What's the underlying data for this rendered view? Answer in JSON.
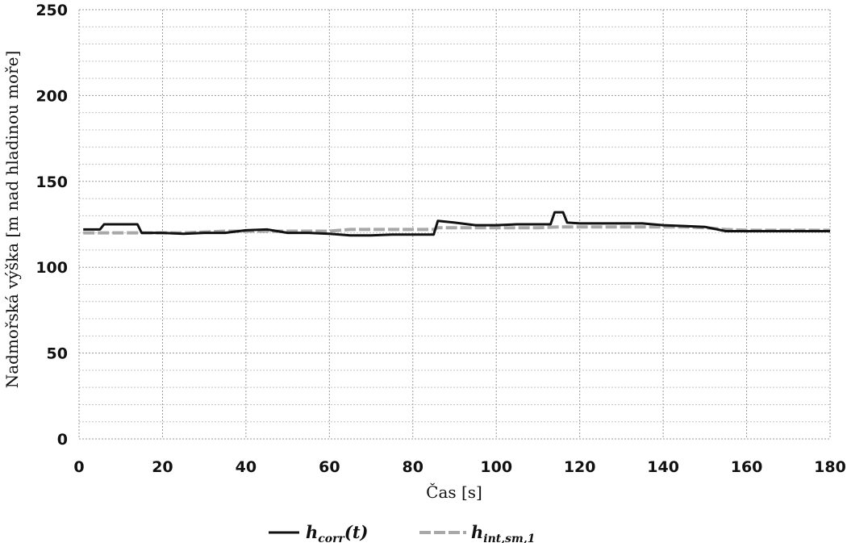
{
  "chart_data": {
    "type": "line",
    "title": "",
    "xlabel": "Čas [s]",
    "ylabel": "Nadmořská výška [m nad hladinou moře]",
    "xlim": [
      0,
      180
    ],
    "ylim": [
      0,
      250
    ],
    "x_ticks": [
      0,
      20,
      40,
      60,
      80,
      100,
      120,
      140,
      160,
      180
    ],
    "y_ticks": [
      0,
      50,
      100,
      150,
      200,
      250
    ],
    "y_minor_step": 10,
    "grid": true,
    "legend_position": "bottom",
    "series": [
      {
        "name": "h_corr(t)",
        "legend_main": "h",
        "legend_sub": "corr",
        "legend_suffix": "(t)",
        "color": "#111111",
        "style": "solid",
        "x": [
          1,
          5,
          6,
          14,
          15,
          20,
          25,
          30,
          35,
          40,
          45,
          50,
          55,
          60,
          65,
          70,
          75,
          80,
          85,
          86,
          90,
          95,
          100,
          105,
          110,
          113,
          114,
          116,
          117,
          120,
          125,
          130,
          135,
          140,
          145,
          150,
          155,
          160,
          165,
          170,
          175,
          180
        ],
        "y": [
          122,
          122,
          125,
          125,
          120,
          120,
          119.5,
          120,
          120,
          121.5,
          122,
          120,
          120,
          119.5,
          118.5,
          118.5,
          119,
          119,
          119,
          127,
          126,
          124.5,
          124.5,
          125,
          125,
          125,
          132,
          132,
          126,
          125.5,
          125.5,
          125.5,
          125.5,
          124.5,
          124,
          123.5,
          121,
          121,
          121,
          121,
          121,
          121
        ]
      },
      {
        "name": "h_int,sm,1",
        "legend_main": "h",
        "legend_sub": "int,sm,1",
        "legend_suffix": "",
        "color": "#a8a8a8",
        "style": "dashed",
        "x": [
          1,
          5,
          10,
          15,
          20,
          25,
          30,
          35,
          40,
          45,
          50,
          55,
          60,
          65,
          70,
          75,
          80,
          85,
          86,
          90,
          95,
          100,
          105,
          110,
          115,
          120,
          125,
          130,
          135,
          140,
          145,
          150,
          155,
          160,
          165,
          170,
          175,
          180
        ],
        "y": [
          120,
          120,
          120,
          120,
          120,
          120,
          120.5,
          121,
          121,
          121,
          121,
          121,
          121,
          122,
          122,
          122,
          122,
          122,
          123,
          123,
          123,
          123,
          123,
          123,
          123.5,
          123.5,
          123.5,
          123.5,
          123.5,
          123.5,
          123.5,
          123,
          122,
          121.5,
          121.5,
          121.5,
          121.5,
          121.5
        ]
      }
    ]
  }
}
